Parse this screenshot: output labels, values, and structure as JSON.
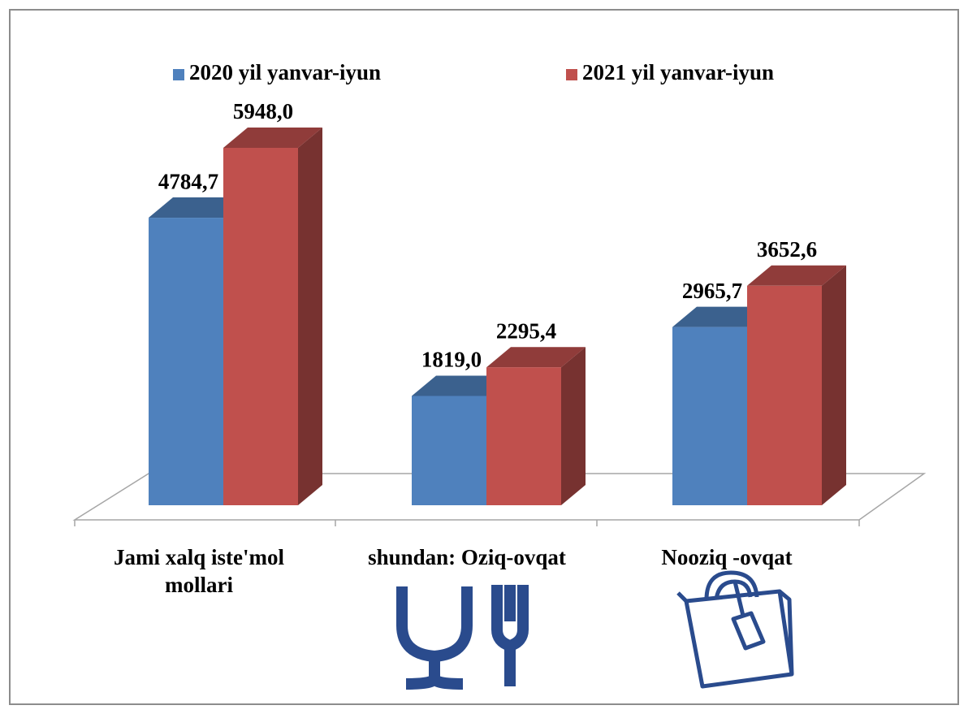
{
  "chart_data": {
    "type": "bar",
    "categories": [
      "Jami xalq iste'mol mollari",
      "shundan: Oziq-ovqat",
      "Nooziq -ovqat"
    ],
    "series": [
      {
        "name": "2020 yil yanvar-iyun",
        "color": "#4f81bd",
        "values": [
          4784.7,
          1819.0,
          2965.7
        ],
        "value_labels": [
          "4784,7",
          "1819,0",
          "2965,7"
        ]
      },
      {
        "name": "2021 yil yanvar-iyun",
        "color": "#c0504d",
        "values": [
          5948.0,
          2295.4,
          3652.6
        ],
        "value_labels": [
          "5948,0",
          "2295,4",
          "3652,6"
        ]
      }
    ],
    "legend": "top"
  }
}
